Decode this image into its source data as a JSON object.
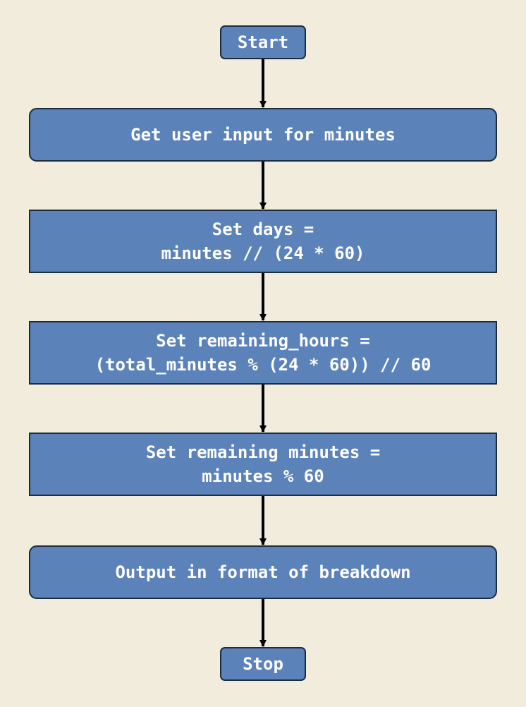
{
  "flowchart": {
    "start": "Start",
    "input": "Get user input for minutes",
    "days": {
      "line1": "Set days =",
      "line2": "minutes // (24 * 60)"
    },
    "hours": {
      "line1": "Set remaining_hours =",
      "line2": "(total_minutes % (24 * 60)) // 60"
    },
    "minutes": {
      "line1": "Set remaining minutes =",
      "line2": "minutes % 60"
    },
    "output": "Output in format of breakdown",
    "stop": "Stop"
  },
  "colors": {
    "background": "#f1ecdc",
    "node_fill": "#5b82b9",
    "node_border": "#1d2b3f",
    "node_text": "#ffffff",
    "arrow": "#000000"
  }
}
